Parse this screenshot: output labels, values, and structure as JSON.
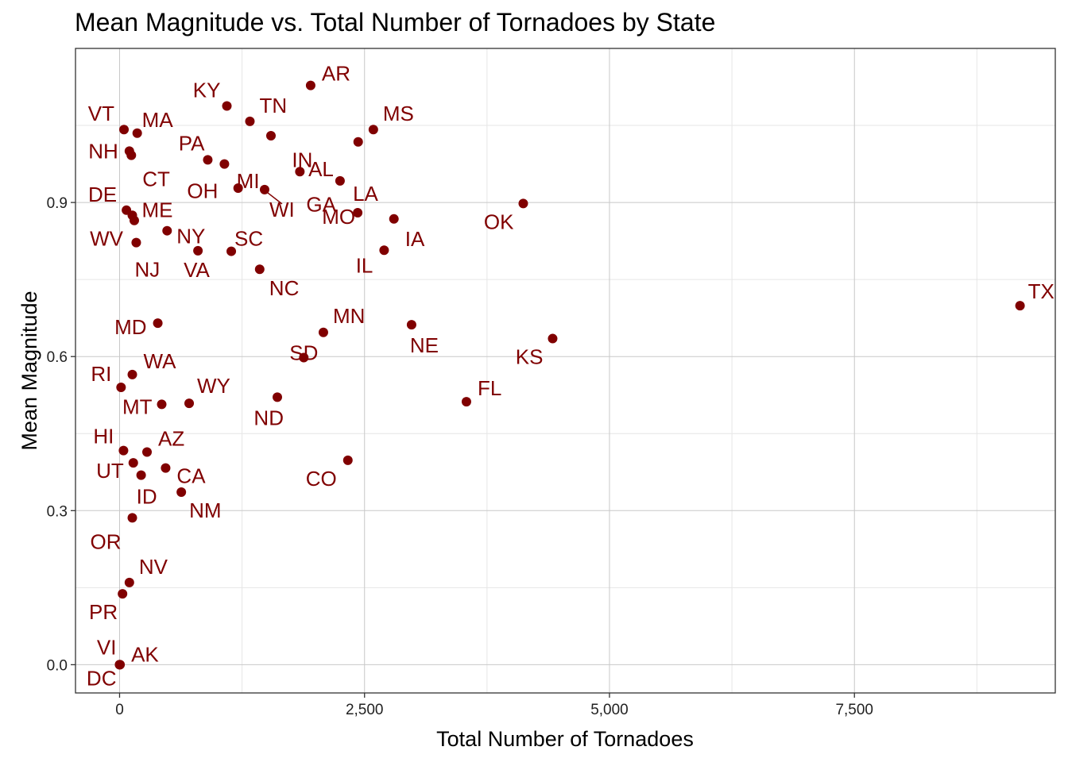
{
  "colors": {
    "point": "#800000",
    "label": "#800000",
    "panel_border": "#333333"
  },
  "chart_data": {
    "type": "scatter",
    "title": "Mean Magnitude vs. Total Number of Tornadoes by State",
    "xlabel": "Total Number of Tornadoes",
    "ylabel": "Mean Magnitude",
    "xlim": [
      -450,
      9550
    ],
    "ylim": [
      -0.055,
      1.2
    ],
    "x_ticks": [
      0,
      2500,
      5000,
      7500
    ],
    "x_tick_labels": [
      "0",
      "2,500",
      "5,000",
      "7,500"
    ],
    "y_ticks": [
      0.0,
      0.3,
      0.6,
      0.9
    ],
    "y_tick_labels": [
      "0.0",
      "0.3",
      "0.6",
      "0.9"
    ],
    "grid": true,
    "points": [
      {
        "label": "AR",
        "x": 1950,
        "y": 1.128
      },
      {
        "label": "KY",
        "x": 1095,
        "y": 1.088
      },
      {
        "label": "TN",
        "x": 1330,
        "y": 1.058
      },
      {
        "label": "MS",
        "x": 2590,
        "y": 1.042
      },
      {
        "label": "VT",
        "x": 45,
        "y": 1.042
      },
      {
        "label": "MA",
        "x": 180,
        "y": 1.035
      },
      {
        "label": "IN",
        "x": 1545,
        "y": 1.03
      },
      {
        "label": "NH",
        "x": 100,
        "y": 1.0
      },
      {
        "label": "CT",
        "x": 120,
        "y": 0.992
      },
      {
        "label": "PA",
        "x": 900,
        "y": 0.983
      },
      {
        "label": "MI",
        "x": 1070,
        "y": 0.975
      },
      {
        "label": "AL",
        "x": 2435,
        "y": 1.018
      },
      {
        "label": "IN2",
        "x": 1840,
        "y": 0.96
      },
      {
        "label": "GA",
        "x": 2250,
        "y": 0.942
      },
      {
        "label": "OH",
        "x": 1210,
        "y": 0.928
      },
      {
        "label": "WI",
        "x": 1480,
        "y": 0.925
      },
      {
        "label": "OK",
        "x": 4120,
        "y": 0.898
      },
      {
        "label": "DE",
        "x": 70,
        "y": 0.885
      },
      {
        "label": "LA",
        "x": 2430,
        "y": 0.88
      },
      {
        "label": "ME",
        "x": 130,
        "y": 0.875
      },
      {
        "label": "IA",
        "x": 2800,
        "y": 0.868
      },
      {
        "label": "WV",
        "x": 150,
        "y": 0.865
      },
      {
        "label": "NY",
        "x": 485,
        "y": 0.845
      },
      {
        "label": "NJ",
        "x": 170,
        "y": 0.822
      },
      {
        "label": "IL",
        "x": 2700,
        "y": 0.807
      },
      {
        "label": "VA",
        "x": 800,
        "y": 0.806
      },
      {
        "label": "SC",
        "x": 1140,
        "y": 0.805
      },
      {
        "label": "NC",
        "x": 1430,
        "y": 0.77
      },
      {
        "label": "TX",
        "x": 9190,
        "y": 0.699
      },
      {
        "label": "MD",
        "x": 390,
        "y": 0.665
      },
      {
        "label": "NE",
        "x": 2980,
        "y": 0.662
      },
      {
        "label": "MN",
        "x": 2080,
        "y": 0.647
      },
      {
        "label": "KS",
        "x": 4420,
        "y": 0.635
      },
      {
        "label": "MO",
        "x": 1880,
        "y": 0.598
      },
      {
        "label": "WA",
        "x": 130,
        "y": 0.565
      },
      {
        "label": "RI",
        "x": 15,
        "y": 0.54
      },
      {
        "label": "SD",
        "x": 1610,
        "y": 0.521
      },
      {
        "label": "FL",
        "x": 3540,
        "y": 0.512
      },
      {
        "label": "WY",
        "x": 710,
        "y": 0.509
      },
      {
        "label": "MT",
        "x": 430,
        "y": 0.507
      },
      {
        "label": "HI",
        "x": 40,
        "y": 0.417
      },
      {
        "label": "AZ",
        "x": 280,
        "y": 0.414
      },
      {
        "label": "CO",
        "x": 2330,
        "y": 0.398
      },
      {
        "label": "UT",
        "x": 140,
        "y": 0.393
      },
      {
        "label": "CA",
        "x": 470,
        "y": 0.383
      },
      {
        "label": "ID",
        "x": 220,
        "y": 0.369
      },
      {
        "label": "NM",
        "x": 630,
        "y": 0.336
      },
      {
        "label": "OR",
        "x": 130,
        "y": 0.286
      },
      {
        "label": "NV",
        "x": 100,
        "y": 0.16
      },
      {
        "label": "PR",
        "x": 30,
        "y": 0.138
      },
      {
        "label": "AK",
        "x": 5,
        "y": 0.0
      },
      {
        "label": "VI",
        "x": 0,
        "y": 0.0
      },
      {
        "label": "DC",
        "x": 0,
        "y": 0.0
      }
    ],
    "labels": [
      {
        "text": "AR",
        "ref": "AR"
      },
      {
        "text": "KY",
        "ref": "KY"
      },
      {
        "text": "TN",
        "ref": "TN"
      },
      {
        "text": "MS",
        "ref": "MS"
      },
      {
        "text": "VT",
        "ref": "VT"
      },
      {
        "text": "MA",
        "ref": "MA"
      },
      {
        "text": "IN",
        "ref": "IN2"
      },
      {
        "text": "NH",
        "ref": "NH"
      },
      {
        "text": "CT",
        "ref": "CT"
      },
      {
        "text": "PA",
        "ref": "PA"
      },
      {
        "text": "MI",
        "ref": "OH"
      },
      {
        "text": "AL",
        "ref": "GA"
      },
      {
        "text": "GA",
        "ref": "IN2"
      },
      {
        "text": "OH",
        "ref": "MI"
      },
      {
        "text": "WI",
        "ref": "WI"
      },
      {
        "text": "OK",
        "ref": "OK"
      },
      {
        "text": "DE",
        "ref": "DE"
      },
      {
        "text": "LA",
        "ref": "LA"
      },
      {
        "text": "ME",
        "ref": "ME"
      },
      {
        "text": "IA",
        "ref": "IA"
      },
      {
        "text": "WV",
        "ref": "WV"
      },
      {
        "text": "NY",
        "ref": "NY"
      },
      {
        "text": "NJ",
        "ref": "NJ"
      },
      {
        "text": "IL",
        "ref": "IL"
      },
      {
        "text": "VA",
        "ref": "VA"
      },
      {
        "text": "SC",
        "ref": "SC"
      },
      {
        "text": "NC",
        "ref": "NC"
      },
      {
        "text": "MO",
        "ref": "LA"
      },
      {
        "text": "TX",
        "ref": "TX"
      },
      {
        "text": "MD",
        "ref": "MD"
      },
      {
        "text": "NE",
        "ref": "NE"
      },
      {
        "text": "MN",
        "ref": "MN"
      },
      {
        "text": "KS",
        "ref": "KS"
      },
      {
        "text": "WA",
        "ref": "WA"
      },
      {
        "text": "RI",
        "ref": "RI"
      },
      {
        "text": "SD",
        "ref": "MO"
      },
      {
        "text": "FL",
        "ref": "FL"
      },
      {
        "text": "WY",
        "ref": "WY"
      },
      {
        "text": "MT",
        "ref": "MT"
      },
      {
        "text": "ND",
        "ref": "SD"
      },
      {
        "text": "HI",
        "ref": "HI"
      },
      {
        "text": "AZ",
        "ref": "AZ"
      },
      {
        "text": "CO",
        "ref": "CO"
      },
      {
        "text": "UT",
        "ref": "UT"
      },
      {
        "text": "CA",
        "ref": "CA"
      },
      {
        "text": "ID",
        "ref": "ID"
      },
      {
        "text": "NM",
        "ref": "NM"
      },
      {
        "text": "OR",
        "ref": "OR"
      },
      {
        "text": "NV",
        "ref": "NV"
      },
      {
        "text": "PR",
        "ref": "PR"
      },
      {
        "text": "AK",
        "ref": "AK"
      },
      {
        "text": "VI",
        "ref": "VI"
      },
      {
        "text": "DC",
        "ref": "DC"
      }
    ]
  }
}
